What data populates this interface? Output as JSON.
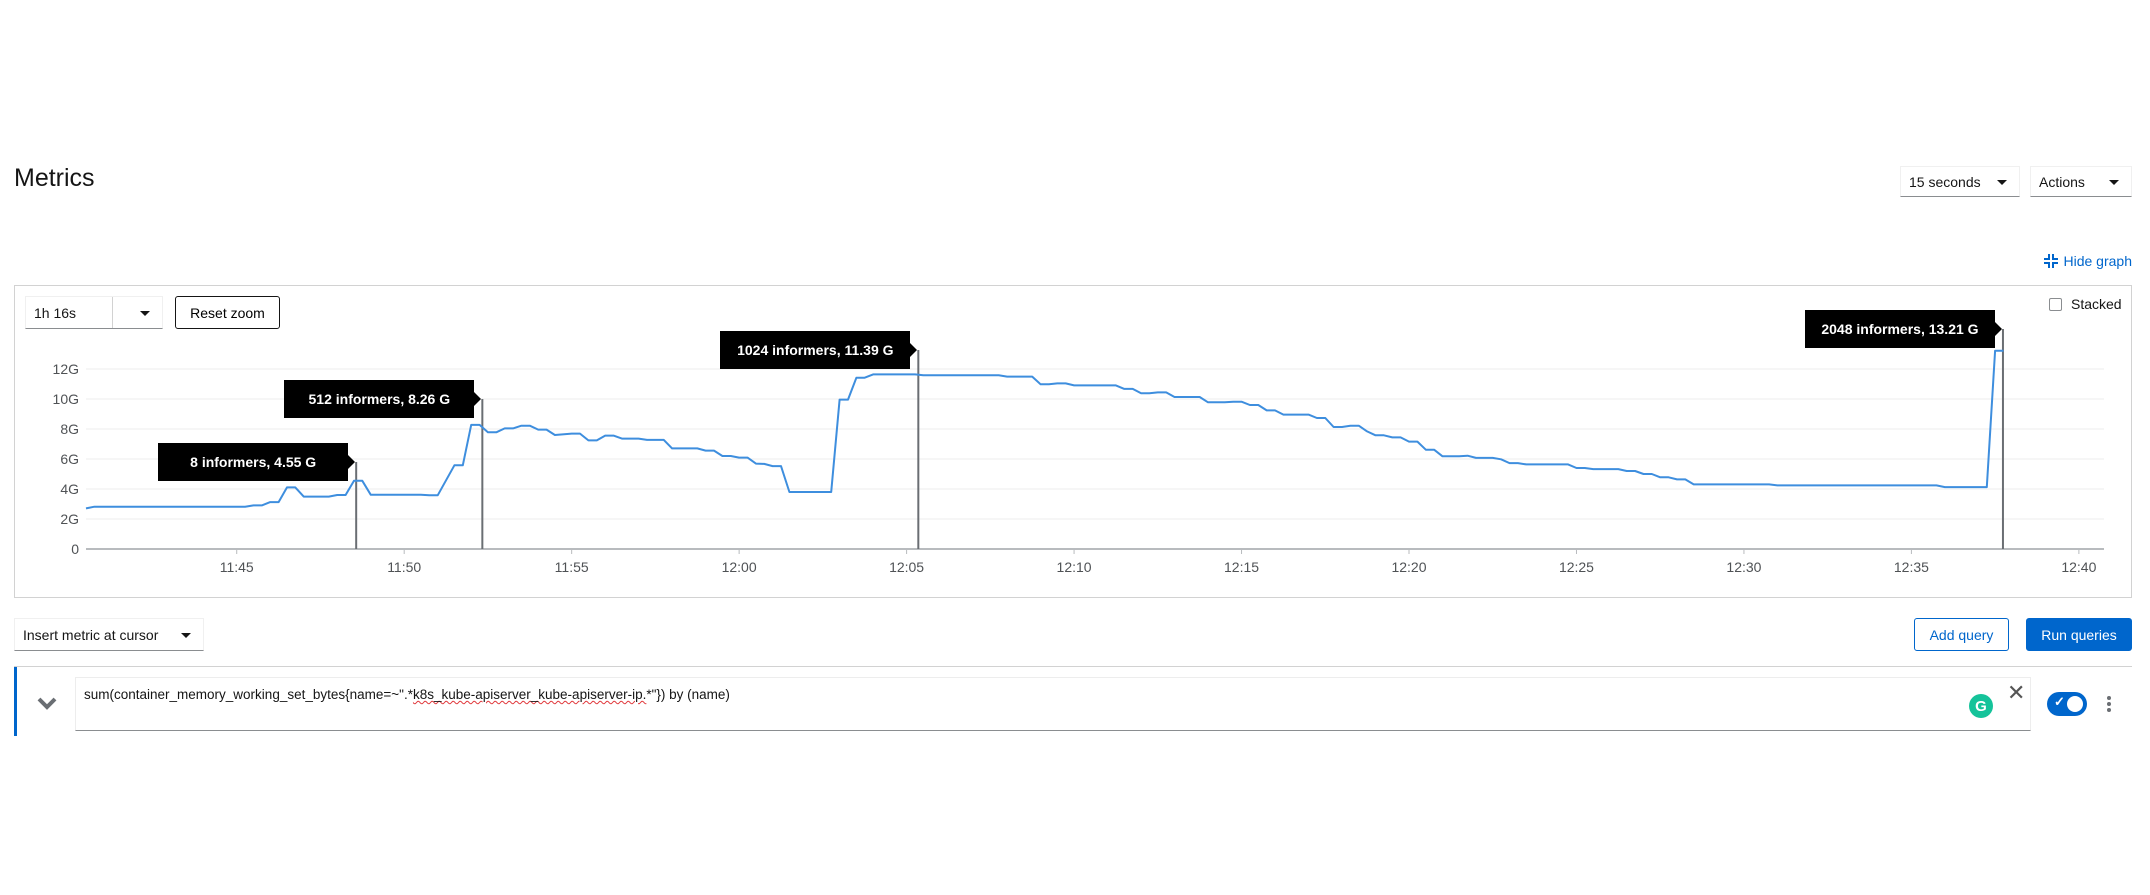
{
  "page": {
    "title": "Metrics"
  },
  "toolbar": {
    "refresh_interval": "15 seconds",
    "actions_label": "Actions",
    "hide_graph_label": "Hide graph"
  },
  "graph": {
    "time_range": "1h 16s",
    "reset_zoom_label": "Reset zoom",
    "stacked_label": "Stacked",
    "stacked_checked": false
  },
  "query_toolbar": {
    "insert_metric_label": "Insert metric at cursor",
    "add_query_label": "Add query",
    "run_queries_label": "Run queries"
  },
  "query": {
    "text_before": "sum(container_memory_working_set_bytes{name=~\".*",
    "text_misspelled": "k8s_kube-apiserver_kube-apiserver-ip.",
    "text_after": "*\"}) by (name)",
    "enabled": true
  },
  "colors": {
    "accent": "#0066cc",
    "series": "#3e8ede",
    "grammarly": "#15c39a"
  },
  "icons": {
    "hide_graph": "compress-icon",
    "expand": "chevron-down-icon",
    "clear": "close-icon",
    "menu": "kebab-icon",
    "grammar": "grammarly-icon"
  },
  "chart_data": {
    "type": "line",
    "xlim": [
      "11:40:30",
      "12:40:45"
    ],
    "ylim": [
      0,
      14
    ],
    "y_ticks": [
      "0",
      "2G",
      "4G",
      "6G",
      "8G",
      "10G",
      "12G"
    ],
    "y_tick_values": [
      0,
      2,
      4,
      6,
      8,
      10,
      12
    ],
    "x_ticks": [
      "11:45",
      "11:50",
      "11:55",
      "12:00",
      "12:05",
      "12:10",
      "12:15",
      "12:20",
      "12:25",
      "12:30",
      "12:35",
      "12:40"
    ],
    "grid": true,
    "series": [
      {
        "x": [
          "11:40:30",
          "11:40:45",
          "11:45:15",
          "11:45:30",
          "11:45:45",
          "11:46:00",
          "11:46:15",
          "11:46:30",
          "11:46:45",
          "11:47:00",
          "11:47:45",
          "11:48:00",
          "11:48:15",
          "11:48:30",
          "11:48:45",
          "11:49:00",
          "11:50:30",
          "11:50:45",
          "11:51:00",
          "11:51:30",
          "11:51:45",
          "11:52:00",
          "11:52:15",
          "11:52:30",
          "11:52:45",
          "11:53:00",
          "11:53:15",
          "11:53:30",
          "11:53:45",
          "11:54:00",
          "11:54:15",
          "11:54:30",
          "11:55:00",
          "11:55:15",
          "11:55:30",
          "11:55:45",
          "11:56:00",
          "11:56:15",
          "11:56:30",
          "11:57:00",
          "11:57:15",
          "11:57:45",
          "11:58:00",
          "11:58:45",
          "11:59:00",
          "11:59:15",
          "11:59:30",
          "11:59:45",
          "12:00:00",
          "12:00:15",
          "12:00:30",
          "12:00:45",
          "12:01:00",
          "12:01:15",
          "12:01:30",
          "12:02:45",
          "12:03:00",
          "12:03:15",
          "12:03:30",
          "12:03:45",
          "12:04:00",
          "12:05:15",
          "12:05:30",
          "12:07:45",
          "12:08:00",
          "12:08:45",
          "12:09:00",
          "12:09:15",
          "12:09:30",
          "12:09:45",
          "12:10:00",
          "12:11:15",
          "12:11:30",
          "12:11:45",
          "12:12:00",
          "12:12:15",
          "12:12:30",
          "12:12:45",
          "12:13:00",
          "12:13:45",
          "12:14:00",
          "12:14:30",
          "12:14:45",
          "12:15:00",
          "12:15:15",
          "12:15:30",
          "12:15:45",
          "12:16:00",
          "12:16:15",
          "12:17:00",
          "12:17:15",
          "12:17:30",
          "12:17:45",
          "12:18:00",
          "12:18:15",
          "12:18:30",
          "12:18:45",
          "12:19:00",
          "12:19:15",
          "12:19:30",
          "12:19:45",
          "12:20:00",
          "12:20:15",
          "12:20:30",
          "12:20:45",
          "12:21:00",
          "12:21:30",
          "12:21:45",
          "12:22:00",
          "12:22:30",
          "12:22:45",
          "12:23:00",
          "12:23:15",
          "12:23:30",
          "12:24:45",
          "12:25:00",
          "12:25:15",
          "12:25:30",
          "12:26:15",
          "12:26:30",
          "12:26:45",
          "12:27:00",
          "12:27:15",
          "12:27:30",
          "12:27:45",
          "12:28:00",
          "12:28:15",
          "12:28:30",
          "12:30:45",
          "12:31:00",
          "12:35:45",
          "12:36:00",
          "12:37:15",
          "12:37:30",
          "12:37:45"
        ],
        "y": [
          2.71,
          2.82,
          2.82,
          2.91,
          2.91,
          3.13,
          3.13,
          4.11,
          4.11,
          3.49,
          3.49,
          3.6,
          3.6,
          4.55,
          4.55,
          3.62,
          3.62,
          3.58,
          3.58,
          5.58,
          5.58,
          8.27,
          8.27,
          7.78,
          7.78,
          8.04,
          8.04,
          8.22,
          8.22,
          7.96,
          7.96,
          7.6,
          7.69,
          7.69,
          7.24,
          7.24,
          7.56,
          7.56,
          7.36,
          7.36,
          7.27,
          7.27,
          6.71,
          6.71,
          6.56,
          6.56,
          6.2,
          6.2,
          6.09,
          6.09,
          5.69,
          5.67,
          5.53,
          5.53,
          3.8,
          3.8,
          9.96,
          9.96,
          11.42,
          11.42,
          11.64,
          11.64,
          11.58,
          11.58,
          11.49,
          11.49,
          10.98,
          10.98,
          11.04,
          11.04,
          10.91,
          10.91,
          10.67,
          10.67,
          10.38,
          10.38,
          10.44,
          10.44,
          10.13,
          10.13,
          9.78,
          9.78,
          9.82,
          9.82,
          9.6,
          9.6,
          9.24,
          9.24,
          8.96,
          8.96,
          8.73,
          8.73,
          8.13,
          8.13,
          8.22,
          8.22,
          7.84,
          7.58,
          7.58,
          7.44,
          7.44,
          7.16,
          7.16,
          6.62,
          6.62,
          6.18,
          6.18,
          6.22,
          6.07,
          6.07,
          5.98,
          5.73,
          5.73,
          5.64,
          5.64,
          5.4,
          5.4,
          5.33,
          5.33,
          5.2,
          5.2,
          5.0,
          5.0,
          4.78,
          4.78,
          4.64,
          4.64,
          4.31,
          4.31,
          4.24,
          4.24,
          4.13,
          4.13,
          13.22,
          13.22
        ]
      }
    ],
    "annotations": [
      {
        "label": "8 informers, 4.55 G",
        "time": "11:48:34"
      },
      {
        "label": "512 informers, 8.26 G",
        "time": "11:52:20"
      },
      {
        "label": "1024 informers, 11.39 G",
        "time": "12:05:21"
      },
      {
        "label": "2048 informers, 13.21 G",
        "time": "12:37:44"
      }
    ]
  }
}
